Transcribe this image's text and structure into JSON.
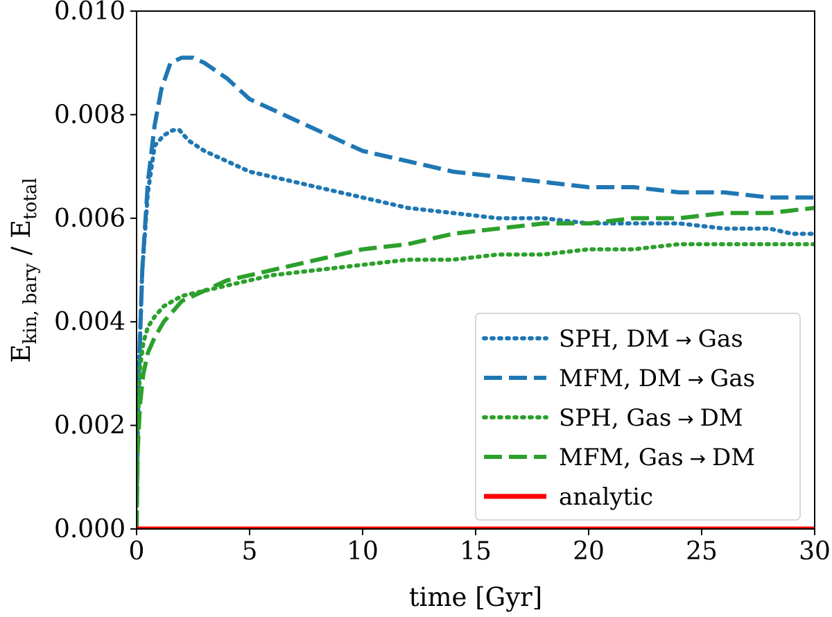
{
  "chart_data": {
    "type": "line",
    "title": "",
    "xlabel": "time [Gyr]",
    "ylabel": {
      "main": "E",
      "main_sub": "kin, bary",
      "sep": " / E",
      "sep_sub": "total"
    },
    "xlim": [
      0,
      30
    ],
    "ylim": [
      0.0,
      0.01
    ],
    "xticks": [
      0,
      5,
      10,
      15,
      20,
      25,
      30
    ],
    "xtick_labels": [
      "0",
      "5",
      "10",
      "15",
      "20",
      "25",
      "30"
    ],
    "yticks": [
      0.0,
      0.002,
      0.004,
      0.006,
      0.008,
      0.01
    ],
    "ytick_labels": [
      "0.000",
      "0.002",
      "0.004",
      "0.006",
      "0.008",
      "0.010"
    ],
    "grid": false,
    "legend_position": "lower-right",
    "series": [
      {
        "name": "SPH, DM → Gas",
        "label_prefix": "SPH, DM",
        "label_arrow": "→",
        "label_suffix": "Gas",
        "color": "#1f77b4",
        "style": "dotted",
        "x": [
          0,
          0.1,
          0.25,
          0.5,
          0.8,
          1.2,
          1.6,
          1.9,
          2.3,
          3,
          4,
          5,
          6,
          7,
          8,
          9,
          10,
          12,
          14,
          16,
          18,
          20,
          22,
          24,
          26,
          28,
          29,
          30
        ],
        "y": [
          0.0005,
          0.003,
          0.005,
          0.0065,
          0.0074,
          0.0076,
          0.0077,
          0.0077,
          0.0075,
          0.0073,
          0.0071,
          0.0069,
          0.0068,
          0.0067,
          0.0066,
          0.0065,
          0.0064,
          0.0062,
          0.0061,
          0.006,
          0.006,
          0.0059,
          0.0059,
          0.0059,
          0.0058,
          0.0058,
          0.0057,
          0.0057
        ]
      },
      {
        "name": "MFM, DM → Gas",
        "label_prefix": "MFM, DM",
        "label_arrow": "→",
        "label_suffix": "Gas",
        "color": "#1f77b4",
        "style": "dashed",
        "x": [
          0,
          0.1,
          0.25,
          0.5,
          0.8,
          1.1,
          1.5,
          2,
          2.5,
          3,
          4,
          5,
          6,
          7,
          8,
          9,
          10,
          12,
          14,
          16,
          18,
          20,
          22,
          24,
          26,
          28,
          30
        ],
        "y": [
          0.0005,
          0.003,
          0.005,
          0.0067,
          0.0078,
          0.0085,
          0.009,
          0.0091,
          0.0091,
          0.009,
          0.0087,
          0.0083,
          0.0081,
          0.0079,
          0.0077,
          0.0075,
          0.0073,
          0.0071,
          0.0069,
          0.0068,
          0.0067,
          0.0066,
          0.0066,
          0.0065,
          0.0065,
          0.0064,
          0.0064
        ]
      },
      {
        "name": "SPH, Gas → DM",
        "label_prefix": "SPH, Gas",
        "label_arrow": "→",
        "label_suffix": "DM",
        "color": "#2ca02c",
        "style": "dotted",
        "x": [
          0,
          0.05,
          0.15,
          0.3,
          0.5,
          0.8,
          1.2,
          2,
          3,
          4,
          5,
          6,
          8,
          10,
          12,
          14,
          16,
          18,
          20,
          22,
          24,
          26,
          28,
          30
        ],
        "y": [
          0.0,
          0.002,
          0.0031,
          0.0036,
          0.0039,
          0.0041,
          0.0043,
          0.0045,
          0.0046,
          0.0047,
          0.0048,
          0.0049,
          0.005,
          0.0051,
          0.0052,
          0.0052,
          0.0053,
          0.0053,
          0.0054,
          0.0054,
          0.0055,
          0.0055,
          0.0055,
          0.0055
        ]
      },
      {
        "name": "MFM, Gas → DM",
        "label_prefix": "MFM, Gas",
        "label_arrow": "→",
        "label_suffix": "DM",
        "color": "#2ca02c",
        "style": "dashed",
        "x": [
          0,
          0.05,
          0.15,
          0.3,
          0.5,
          0.8,
          1.2,
          1.6,
          2,
          2.5,
          3,
          4,
          5,
          6,
          8,
          10,
          12,
          14,
          16,
          18,
          20,
          22,
          24,
          26,
          28,
          30
        ],
        "y": [
          0.0,
          0.0015,
          0.0024,
          0.003,
          0.0034,
          0.0037,
          0.004,
          0.0042,
          0.0044,
          0.0045,
          0.0046,
          0.0048,
          0.0049,
          0.005,
          0.0052,
          0.0054,
          0.0055,
          0.0057,
          0.0058,
          0.0059,
          0.0059,
          0.006,
          0.006,
          0.0061,
          0.0061,
          0.0062
        ]
      },
      {
        "name": "analytic",
        "label_prefix": "analytic",
        "label_arrow": "",
        "label_suffix": "",
        "color": "#ff0000",
        "style": "solid",
        "x": [
          0,
          30
        ],
        "y": [
          0.0,
          0.0
        ]
      }
    ]
  }
}
